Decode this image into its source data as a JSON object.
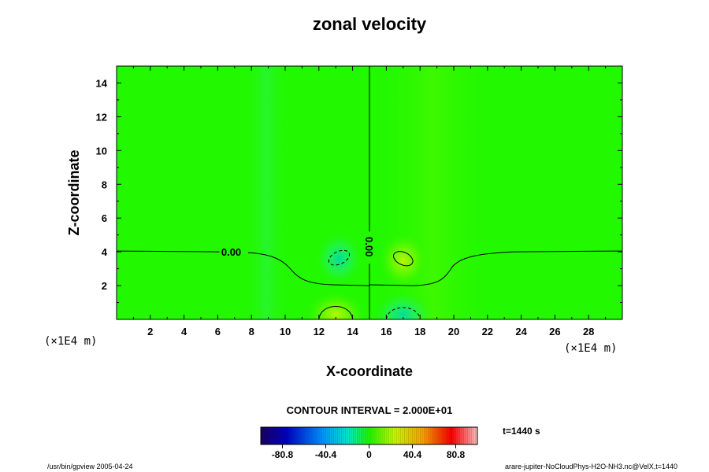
{
  "chart_data": {
    "type": "heatmap",
    "title": "zonal velocity",
    "xlabel": "X-coordinate",
    "ylabel": "Z-coordinate",
    "x_unit_left": "(×1E4 m)",
    "x_unit_right": "(×1E4 m)",
    "xlim": [
      0,
      30
    ],
    "ylim": [
      0,
      15
    ],
    "xticks": [
      "2",
      "4",
      "6",
      "8",
      "10",
      "12",
      "14",
      "16",
      "18",
      "20",
      "22",
      "24",
      "26",
      "28"
    ],
    "yticks": [
      "2",
      "4",
      "6",
      "8",
      "10",
      "12",
      "14"
    ],
    "contour_interval_text": "CONTOUR INTERVAL = 2.000E+01",
    "colorbar": {
      "ticks": [
        "-80.8",
        "-40.4",
        "0",
        "40.4",
        "80.8"
      ],
      "range": [
        -101,
        101
      ]
    },
    "contour_labels": [
      {
        "text": "0.00",
        "x": 6.8,
        "z": 4.0,
        "rotate": 0
      },
      {
        "text": "0.00",
        "x": 15.0,
        "z": 4.3,
        "rotate": 90
      }
    ],
    "time_label": "t=1440 s",
    "features": [
      {
        "kind": "negative",
        "x": 13.2,
        "z": 3.6,
        "value": -10
      },
      {
        "kind": "positive",
        "x": 17.0,
        "z": 3.5,
        "value": 10
      },
      {
        "kind": "positive",
        "x": 13.0,
        "z": 0.3,
        "value": 12
      },
      {
        "kind": "negative",
        "x": 17.0,
        "z": 0.3,
        "value": -12
      }
    ]
  },
  "footer": {
    "left": "/usr/bin/gpview 2005-04-24",
    "right": "arare-jupiter-NoCloudPhys-H2O-NH3.nc@VelX,t=1440"
  },
  "colors": {
    "background_field": "#22f800",
    "negative": "#00d8b0",
    "positive": "#b8f800"
  }
}
